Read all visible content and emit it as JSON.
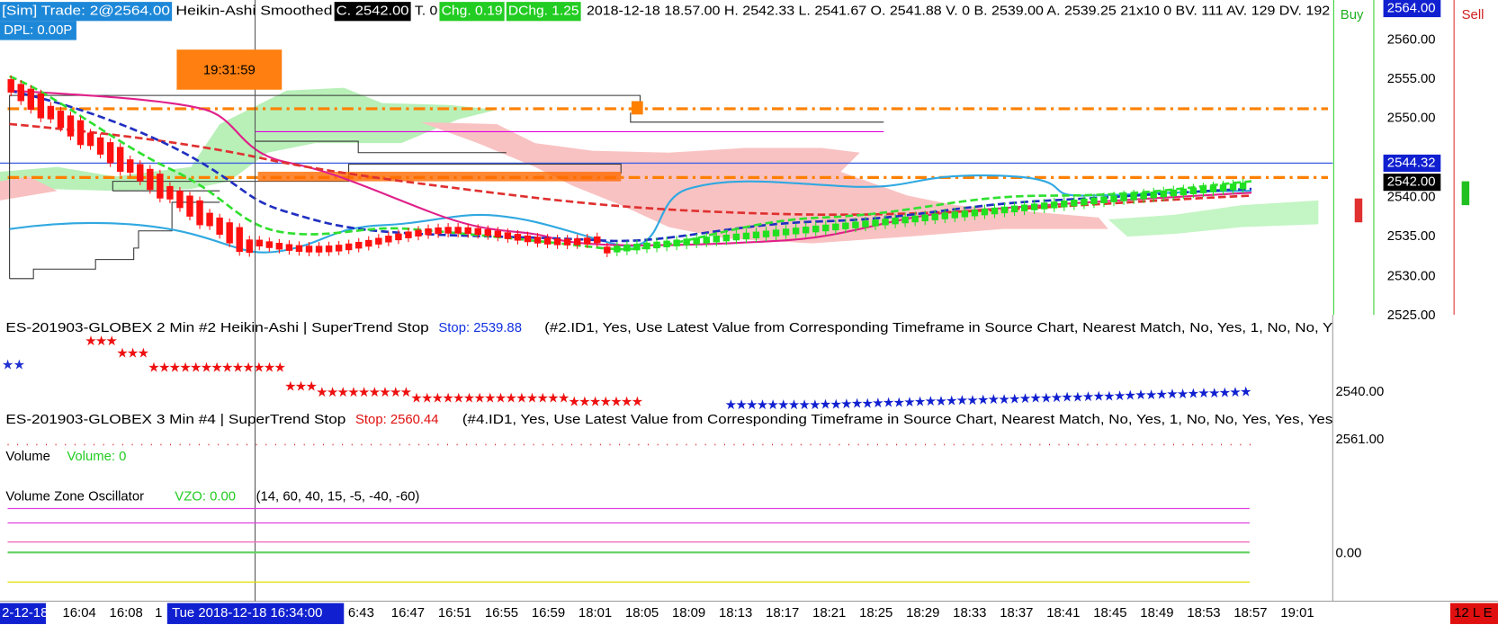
{
  "header": {
    "segments": [
      "[Sim]  Trade: 2@2564.00",
      "Heikin-Ashi Smoothed",
      "C. 2542.00",
      "T. 0",
      "Chg. 0.19",
      "DChg. 1.25",
      "2018-12-18 18.57.00  H. 2542.33  L. 2541.67  O. 2541.88  V. 0  B. 2539.00  A. 2539.25  21x10  0  BV. 111  AV. 129  DV. 192"
    ],
    "dpl": "DPL: 0.00P",
    "clock": "19:31:59"
  },
  "buttons": {
    "buy": "Buy",
    "sell": "Sell"
  },
  "price_axis": {
    "labels": [
      "2560.00",
      "2555.00",
      "2550.00",
      "2540.00",
      "2535.00",
      "2530.00",
      "2525.00"
    ],
    "trade": "2564.00",
    "last": "2544.32",
    "close": "2542.00"
  },
  "panels": [
    {
      "symbol": "ES-201903-GLOBEX  2 Min    #2 Heikin-Ashi | SuperTrend Stop",
      "stop": "Stop: 2539.88",
      "params": "(#2.ID1, Yes, Use Latest Value from Corresponding Timeframe in Source Chart, Nearest Match, No, Yes, 1, No, No, Y",
      "axis": "2540.00"
    },
    {
      "symbol": "ES-201903-GLOBEX  3 Min    #4 | SuperTrend Stop",
      "stop": "Stop: 2560.44",
      "params": "(#4.ID1, Yes, Use Latest Value from Corresponding Timeframe in Source Chart, Nearest Match, No, Yes, 1, No, No, Yes, Yes, Yes",
      "axis": "2561.00"
    }
  ],
  "volume": {
    "title": "Volume",
    "value": "Volume: 0"
  },
  "vzo": {
    "title": "Volume Zone Oscillator",
    "value": "VZO: 0.00",
    "params": "(14, 60, 40, 15, -5, -40, -60)",
    "axis": "0.00"
  },
  "time_axis": {
    "start": "2-12-18",
    "labels": [
      "16:04",
      "16:08",
      "1"
    ],
    "cursor": "Tue 2018-12-18  16:34:00",
    "labels_after": [
      "6:43",
      "16:47",
      "16:51",
      "16:55",
      "16:59",
      "18:01",
      "18:05",
      "18:09",
      "18:13",
      "18:17",
      "18:21",
      "18:25",
      "18:29",
      "18:33",
      "18:37",
      "18:41",
      "18:45",
      "18:49",
      "18:53",
      "18:57",
      "19:01"
    ],
    "badge": "12 L E"
  }
}
